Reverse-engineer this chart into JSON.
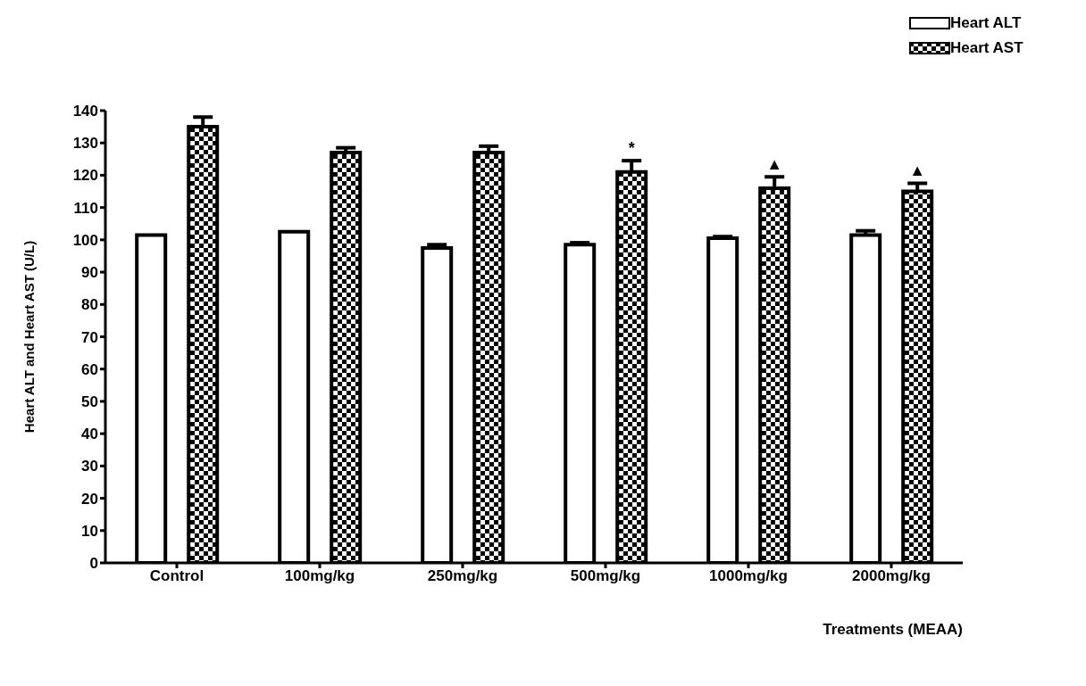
{
  "chart_data": {
    "type": "bar",
    "xlabel": "Treatments (MEAA)",
    "ylabel": "Heart ALT and Heart AST (U/L)",
    "categories": [
      "Control",
      "100mg/kg",
      "250mg/kg",
      "500mg/kg",
      "1000mg/kg",
      "2000mg/kg"
    ],
    "series": [
      {
        "name": "Heart ALT",
        "color": "#ffffff",
        "values": [
          101.5,
          102.5,
          97.5,
          98.5,
          100.5,
          101.5
        ],
        "errors": [
          null,
          null,
          1,
          0.6,
          0.5,
          1.3
        ]
      },
      {
        "name": "Heart AST",
        "color": "#000000",
        "values": [
          135,
          127,
          127,
          121,
          116,
          115
        ],
        "errors": [
          3,
          1.5,
          2,
          3.5,
          3.5,
          2.5
        ],
        "value_labels": [
          null,
          null,
          null,
          "*",
          "▲",
          "▲"
        ]
      }
    ],
    "ylim": [
      0,
      140
    ],
    "yticks": [
      0,
      10,
      20,
      30,
      40,
      50,
      60,
      70,
      80,
      90,
      100,
      110,
      120,
      130,
      140
    ],
    "legend": "top right",
    "grid": false
  }
}
